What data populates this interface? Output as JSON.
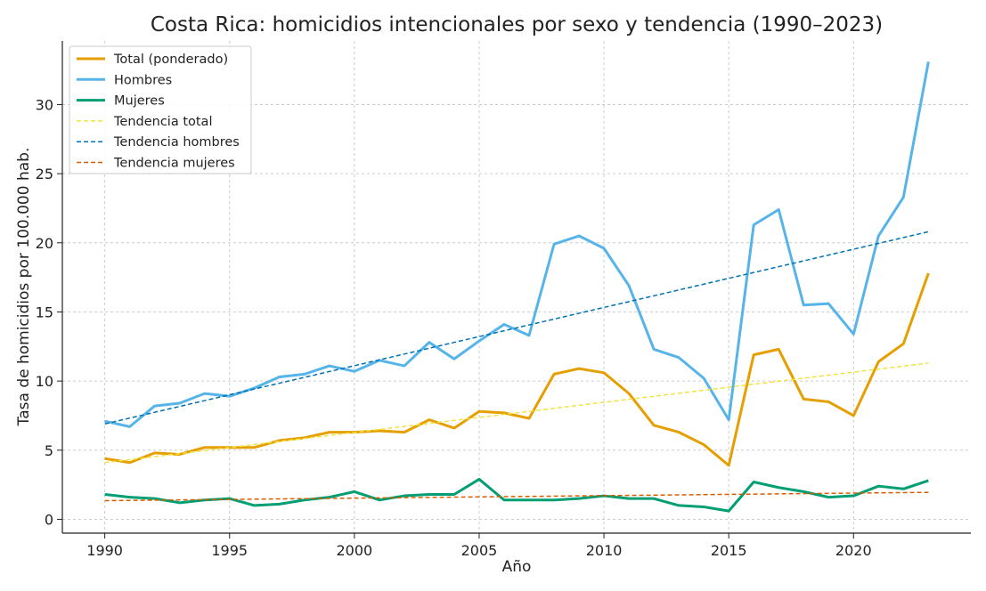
{
  "chart_data": {
    "type": "line",
    "title": "Costa Rica: homicidios intencionales por sexo y tendencia (1990–2023)",
    "xlabel": "Año",
    "ylabel": "Tasa de homicidios por 100.000 hab.",
    "xlim": [
      1988.3,
      2024.7
    ],
    "ylim": [
      -1,
      34.6
    ],
    "xticks": [
      1990,
      1995,
      2000,
      2005,
      2010,
      2015,
      2020
    ],
    "yticks": [
      0,
      5,
      10,
      15,
      20,
      25,
      30
    ],
    "grid": true,
    "legend_position": "top-left",
    "x": [
      1990,
      1991,
      1992,
      1993,
      1994,
      1995,
      1996,
      1997,
      1998,
      1999,
      2000,
      2001,
      2002,
      2003,
      2004,
      2005,
      2006,
      2007,
      2008,
      2009,
      2010,
      2011,
      2012,
      2013,
      2014,
      2015,
      2016,
      2017,
      2018,
      2019,
      2020,
      2021,
      2022,
      2023
    ],
    "series": [
      {
        "name": "Total (ponderado)",
        "color": "#E69F00",
        "style": "solid",
        "values": [
          4.4,
          4.1,
          4.8,
          4.7,
          5.2,
          5.2,
          5.2,
          5.7,
          5.9,
          6.3,
          6.3,
          6.4,
          6.3,
          7.2,
          6.6,
          7.8,
          7.7,
          7.3,
          10.5,
          10.9,
          10.6,
          9.1,
          6.8,
          6.3,
          5.4,
          3.9,
          11.9,
          12.3,
          8.7,
          8.5,
          7.5,
          11.4,
          12.7,
          17.8
        ]
      },
      {
        "name": "Hombres",
        "color": "#56B4E9",
        "style": "solid",
        "values": [
          7.1,
          6.7,
          8.2,
          8.4,
          9.1,
          8.9,
          9.5,
          10.3,
          10.5,
          11.1,
          10.7,
          11.5,
          11.1,
          12.8,
          11.6,
          12.9,
          14.1,
          13.3,
          19.9,
          20.5,
          19.6,
          16.9,
          12.3,
          11.7,
          10.2,
          7.2,
          21.3,
          22.4,
          15.5,
          15.6,
          13.4,
          20.5,
          23.3,
          33.1
        ]
      },
      {
        "name": "Mujeres",
        "color": "#009E73",
        "style": "solid",
        "values": [
          1.8,
          1.6,
          1.5,
          1.2,
          1.4,
          1.5,
          1.0,
          1.1,
          1.4,
          1.6,
          2.0,
          1.4,
          1.7,
          1.8,
          1.8,
          2.9,
          1.4,
          1.4,
          1.4,
          1.5,
          1.7,
          1.5,
          1.5,
          1.0,
          0.9,
          0.6,
          2.7,
          2.3,
          2.0,
          1.6,
          1.7,
          2.4,
          2.2,
          2.8
        ]
      },
      {
        "name": "Tendencia total",
        "color": "#F0E442",
        "style": "dashed",
        "trend": [
          4.1,
          11.3
        ]
      },
      {
        "name": "Tendencia hombres",
        "color": "#0072B2",
        "style": "dashed",
        "trend": [
          6.9,
          20.8
        ]
      },
      {
        "name": "Tendencia mujeres",
        "color": "#D55E00",
        "style": "dashed",
        "trend": [
          1.35,
          1.95
        ]
      }
    ]
  }
}
